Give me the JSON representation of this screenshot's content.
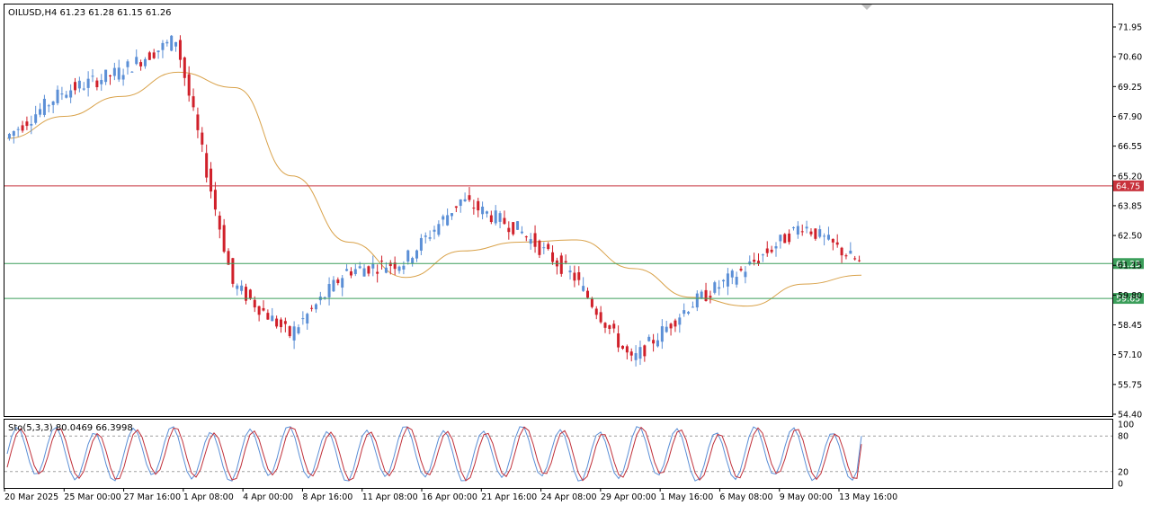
{
  "header": {
    "symbol_line": "OILUSD,H4  61.23 61.28 61.15 61.26"
  },
  "colors": {
    "bull": "#5b8fd6",
    "bear": "#d0202a",
    "ma": "#d9a24a",
    "resistance": "#c8323c",
    "support": "#3b9e5a",
    "stoch_main": "#5b8fd6",
    "stoch_signal": "#c0303a"
  },
  "chart_data": [
    {
      "type": "candlestick",
      "title": "OILUSD,H4",
      "ohlc_readout": "61.23 61.28 61.15 61.26",
      "ylim": [
        54.4,
        71.95
      ],
      "y_ticks": [
        "71.95",
        "70.60",
        "69.25",
        "67.90",
        "66.55",
        "65.20",
        "63.85",
        "62.50",
        "61.15",
        "59.80",
        "58.45",
        "57.10",
        "55.75",
        "54.40"
      ],
      "x_ticks": [
        "20 Mar 2025",
        "25 Mar 00:00",
        "27 Mar 16:00",
        "1 Apr 08:00",
        "4 Apr 00:00",
        "8 Apr 16:00",
        "11 Apr 08:00",
        "16 Apr 00:00",
        "21 Apr 16:00",
        "24 Apr 08:00",
        "29 Apr 00:00",
        "1 May 16:00",
        "6 May 08:00",
        "9 May 00:00",
        "13 May 16:00"
      ],
      "price_path": [
        [
          "20 Mar 2025",
          66.9
        ],
        [
          "25 Mar 00:00",
          69.0
        ],
        [
          "27 Mar 16:00",
          69.9
        ],
        [
          "1 Apr 08:00",
          71.4
        ],
        [
          "4 Apr 00:00",
          60.3
        ],
        [
          "8 Apr 16:00",
          58.0
        ],
        [
          "11 Apr 08:00",
          60.9
        ],
        [
          "16 Apr 00:00",
          61.3
        ],
        [
          "21 Apr 16:00",
          64.1
        ],
        [
          "24 Apr 08:00",
          62.8
        ],
        [
          "29 Apr 00:00",
          60.6
        ],
        [
          "1 May 16:00",
          56.8
        ],
        [
          "6 May 08:00",
          59.3
        ],
        [
          "9 May 00:00",
          61.0
        ],
        [
          "13 May 16:00",
          63.0
        ],
        [
          "last",
          61.26
        ]
      ],
      "moving_average": [
        [
          "20 Mar 2025",
          66.9
        ],
        [
          "25 Mar 00:00",
          67.9
        ],
        [
          "27 Mar 16:00",
          68.8
        ],
        [
          "1 Apr 08:00",
          69.9
        ],
        [
          "4 Apr 00:00",
          69.2
        ],
        [
          "8 Apr 16:00",
          65.2
        ],
        [
          "11 Apr 08:00",
          62.2
        ],
        [
          "16 Apr 00:00",
          60.6
        ],
        [
          "21 Apr 16:00",
          61.8
        ],
        [
          "24 Apr 08:00",
          62.2
        ],
        [
          "29 Apr 00:00",
          62.3
        ],
        [
          "1 May 16:00",
          61.0
        ],
        [
          "6 May 08:00",
          59.7
        ],
        [
          "9 May 00:00",
          59.3
        ],
        [
          "13 May 16:00",
          60.3
        ],
        [
          "last",
          60.7
        ]
      ],
      "levels": [
        {
          "value": 64.75,
          "label": "64.75",
          "role": "resistance"
        },
        {
          "value": 61.23,
          "label": "61.23",
          "role": "current"
        },
        {
          "value": 59.65,
          "label": "59.65",
          "role": "support"
        }
      ],
      "grid": false
    },
    {
      "type": "line",
      "title": "Sto(5,3,3) 80.0469 66.3998",
      "ylim": [
        0,
        100
      ],
      "y_ticks": [
        "100",
        "80",
        "20",
        "0"
      ],
      "levels": [
        80,
        20
      ],
      "series": [
        {
          "role": "main",
          "last": 80.0469
        },
        {
          "role": "signal",
          "last": 66.3998
        }
      ]
    }
  ]
}
